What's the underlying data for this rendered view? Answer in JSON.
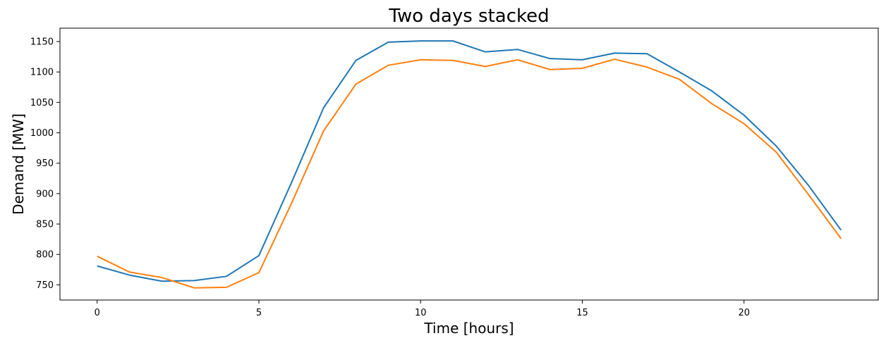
{
  "chart_data": {
    "type": "line",
    "title": "Two days stacked",
    "xlabel": "Time [hours]",
    "ylabel": "Demand [MW]",
    "xlim": [
      -1.15,
      24.15
    ],
    "ylim": [
      725,
      1172
    ],
    "xticks": [
      0,
      5,
      10,
      15,
      20
    ],
    "yticks": [
      750,
      800,
      850,
      900,
      950,
      1000,
      1050,
      1100,
      1150
    ],
    "grid": false,
    "x": [
      0,
      1,
      2,
      3,
      4,
      5,
      6,
      7,
      8,
      9,
      10,
      11,
      12,
      13,
      14,
      15,
      16,
      17,
      18,
      19,
      20,
      21,
      22,
      23
    ],
    "series": [
      {
        "color": "#1f77b4",
        "values": [
          781,
          766,
          756,
          757,
          764,
          798,
          917,
          1041,
          1119,
          1149,
          1151,
          1151,
          1133,
          1137,
          1122,
          1120,
          1131,
          1130,
          1100,
          1069,
          1029,
          978,
          913,
          840
        ]
      },
      {
        "color": "#ff7f0e",
        "values": [
          797,
          771,
          762,
          745,
          746,
          770,
          883,
          1003,
          1080,
          1111,
          1120,
          1119,
          1109,
          1120,
          1104,
          1106,
          1121,
          1108,
          1088,
          1048,
          1015,
          968,
          898,
          826
        ]
      }
    ]
  }
}
